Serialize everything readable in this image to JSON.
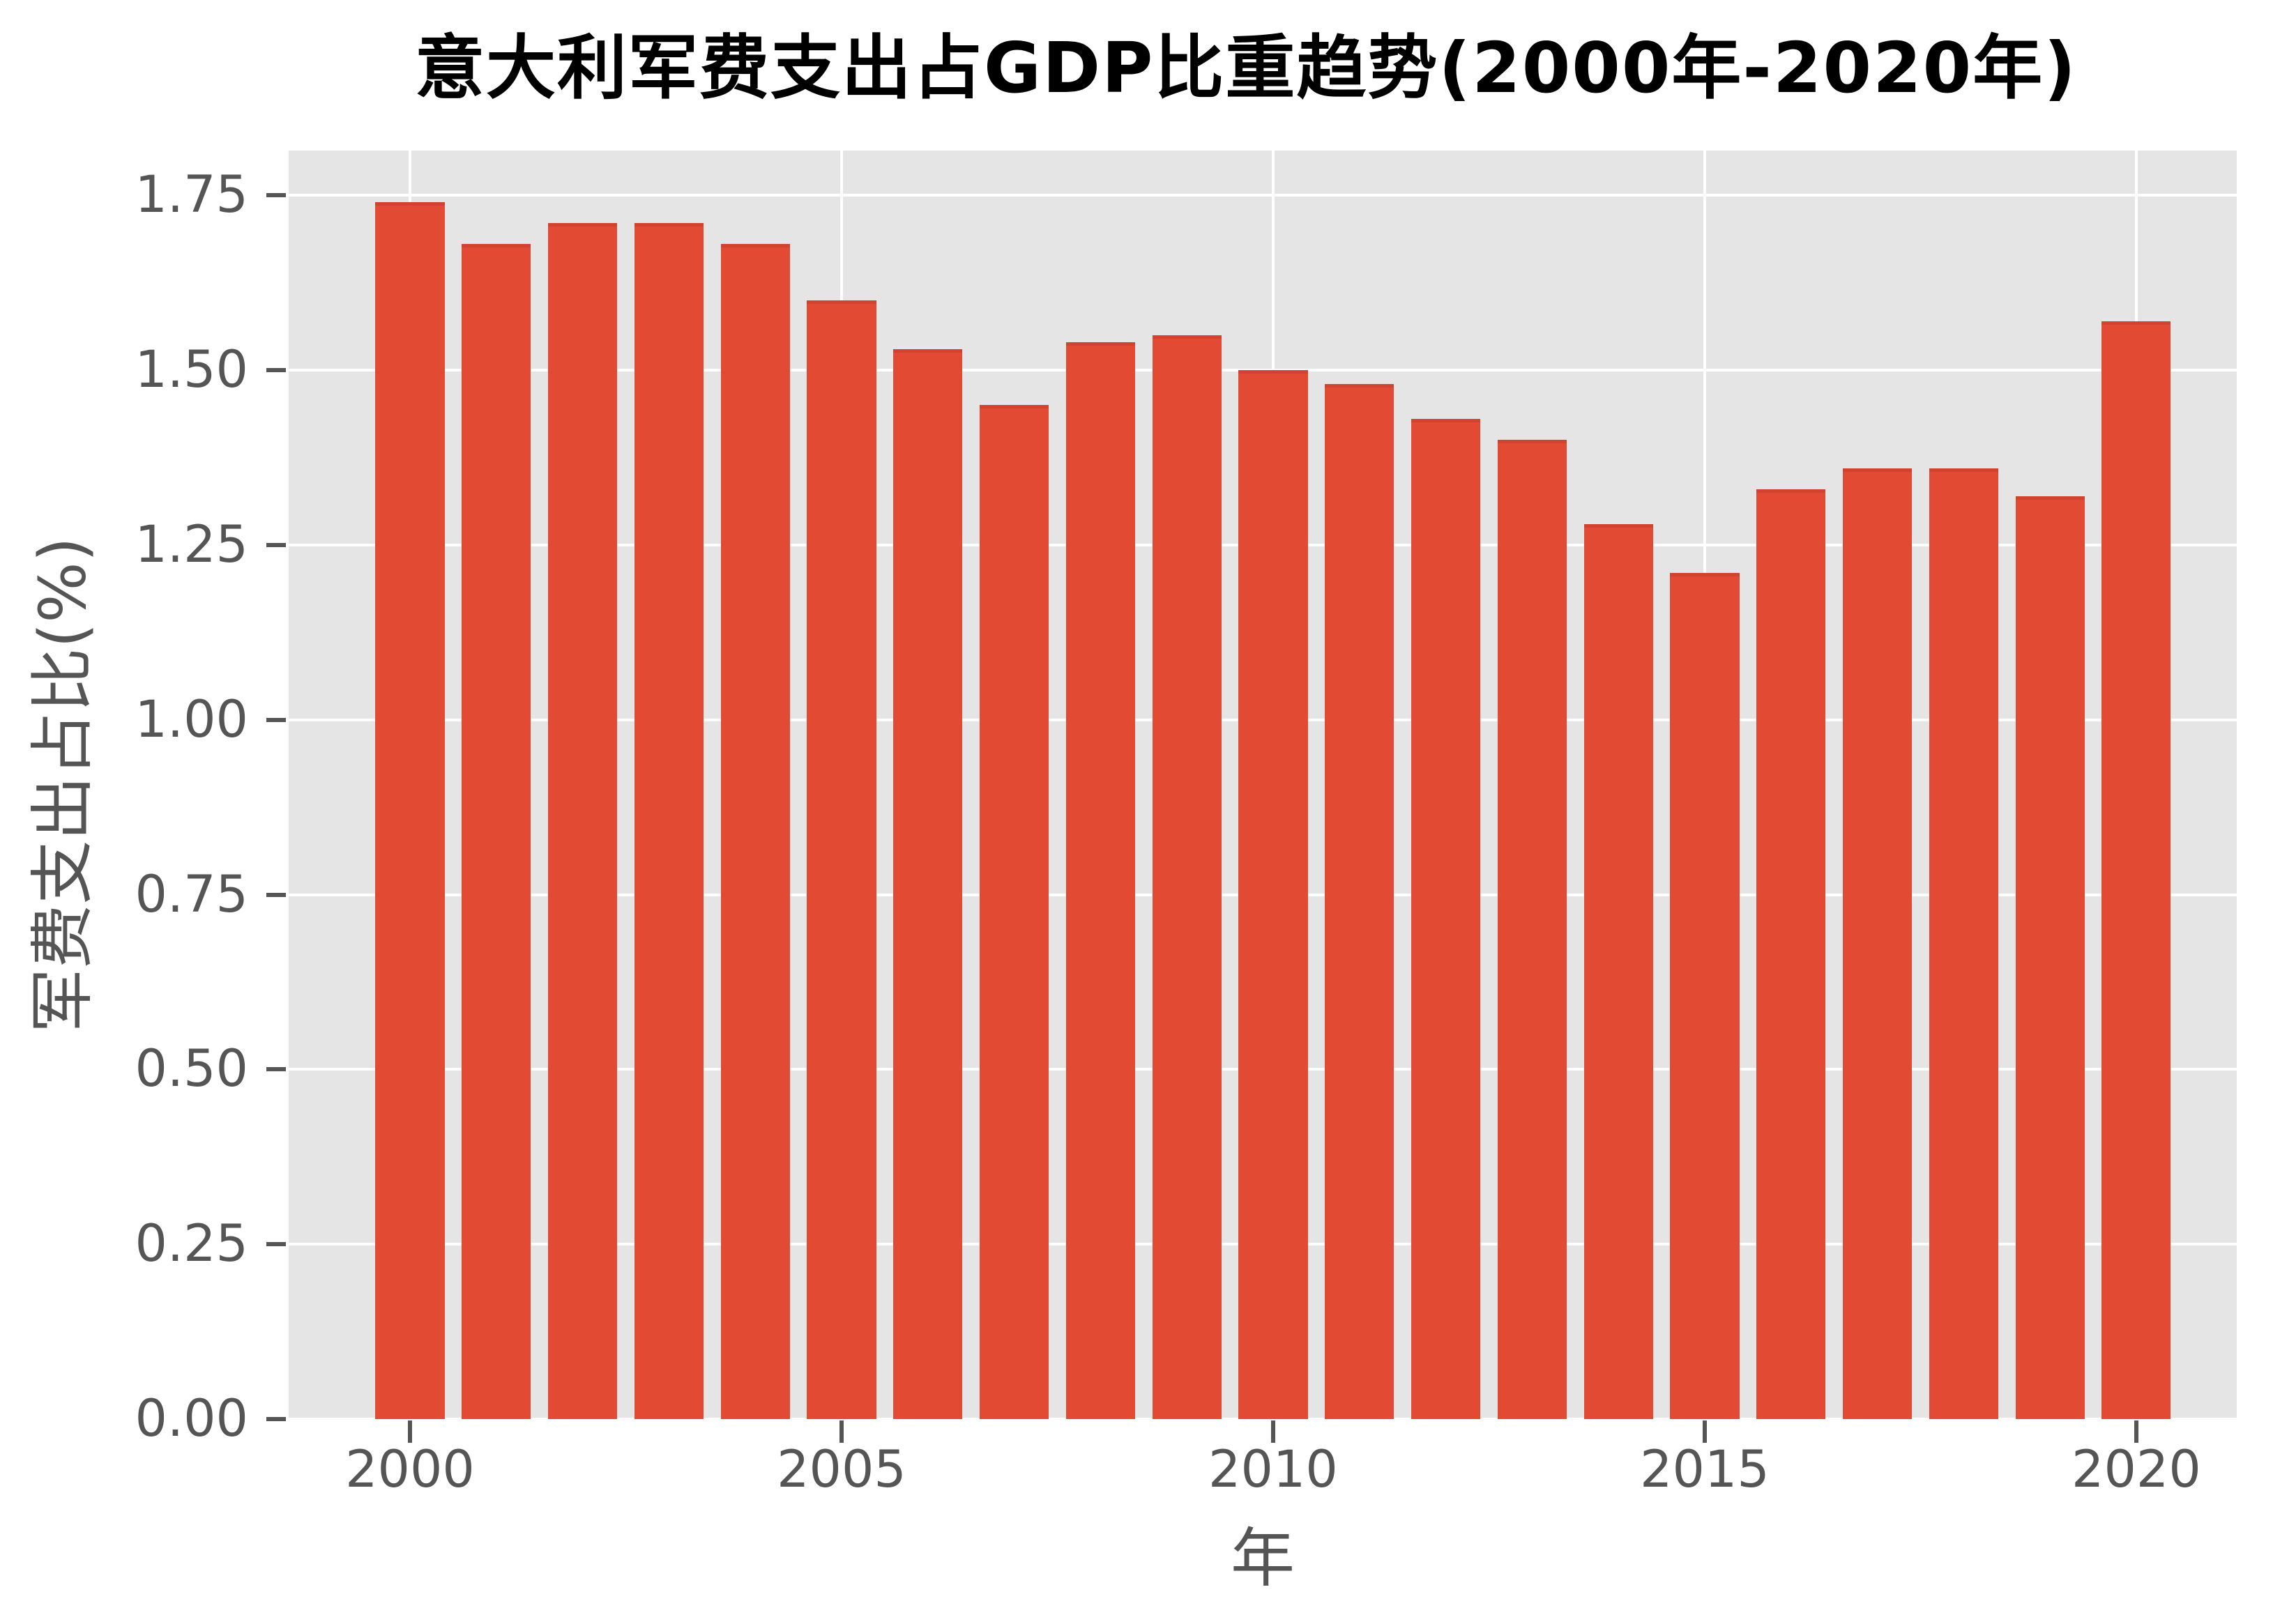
{
  "chart_data": {
    "type": "bar",
    "title": "意大利军费支出占GDP比重趋势(2000年-2020年)",
    "xlabel": "年",
    "ylabel": "军费支出占比(%)",
    "categories": [
      "2000",
      "2001",
      "2002",
      "2003",
      "2004",
      "2005",
      "2006",
      "2007",
      "2008",
      "2009",
      "2010",
      "2011",
      "2012",
      "2013",
      "2014",
      "2015",
      "2016",
      "2017",
      "2018",
      "2019",
      "2020"
    ],
    "values": [
      1.74,
      1.68,
      1.71,
      1.71,
      1.68,
      1.6,
      1.53,
      1.45,
      1.54,
      1.55,
      1.5,
      1.48,
      1.43,
      1.4,
      1.28,
      1.21,
      1.33,
      1.36,
      1.36,
      1.32,
      1.57
    ],
    "x_ticks": [
      "2000",
      "2005",
      "2010",
      "2015",
      "2020"
    ],
    "y_ticks": [
      0,
      0.25,
      0.5,
      0.75,
      1,
      1.25,
      1.5,
      1.75
    ],
    "y_tick_labels": [
      "0.00",
      "0.25",
      "0.50",
      "0.75",
      "1.00",
      "1.25",
      "1.50",
      "1.75"
    ],
    "ylim": [
      0,
      1.814
    ],
    "grid": {
      "color": "#FFFFFF",
      "axis": "both",
      "minor": "off"
    },
    "legend": "none",
    "colors": {
      "bar": "#E24A33",
      "panel_bg": "#E5E5E5",
      "figure_bg": "#FFFFFF",
      "tick_text": "#555555",
      "title_text": "#000000"
    }
  }
}
